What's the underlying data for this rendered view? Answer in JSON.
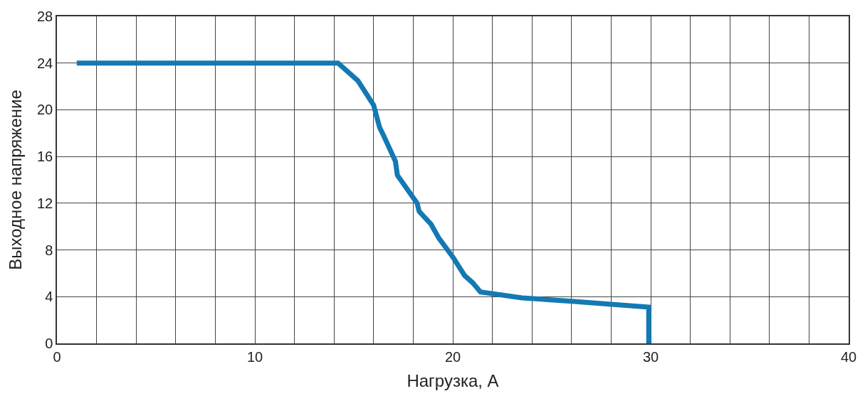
{
  "chart_data": {
    "type": "line",
    "xlabel": "Нагрузка, А",
    "ylabel": "Выходное напряжение",
    "series": [
      {
        "color": "#1479b3",
        "x": [
          1,
          14.2,
          15.2,
          16,
          16.3,
          16.5,
          17.1,
          17.2,
          18.2,
          18.3,
          18.9,
          19.3,
          20,
          20.6,
          21,
          21.4,
          23.5,
          26,
          29.9,
          29.9
        ],
        "values": [
          24,
          24,
          22.5,
          20.4,
          18.5,
          17.8,
          15.6,
          14.4,
          12,
          11.3,
          10.2,
          9,
          7.4,
          5.8,
          5.2,
          4.4,
          3.9,
          3.6,
          3.1,
          0
        ]
      }
    ],
    "xlim": [
      0,
      40
    ],
    "ylim": [
      0,
      28
    ],
    "xticks": [
      0,
      {
        "value": 2,
        "label": null
      },
      {
        "value": 4,
        "label": null
      },
      {
        "value": 6,
        "label": null
      },
      {
        "value": 8,
        "label": null
      },
      10,
      {
        "value": 12,
        "label": null
      },
      {
        "value": 14,
        "label": null
      },
      {
        "value": 16,
        "label": null
      },
      {
        "value": 18,
        "label": null
      },
      20,
      {
        "value": 22,
        "label": null
      },
      {
        "value": 24,
        "label": null
      },
      {
        "value": 26,
        "label": null
      },
      {
        "value": 28,
        "label": null
      },
      30,
      {
        "value": 32,
        "label": null
      },
      {
        "value": 34,
        "label": null
      },
      {
        "value": 36,
        "label": null
      },
      {
        "value": 38,
        "label": null
      },
      40
    ],
    "yticks": [
      0,
      4,
      8,
      12,
      16,
      20,
      24,
      28
    ],
    "grid": true,
    "legend": false,
    "marker": "none",
    "line_style": "solid"
  }
}
